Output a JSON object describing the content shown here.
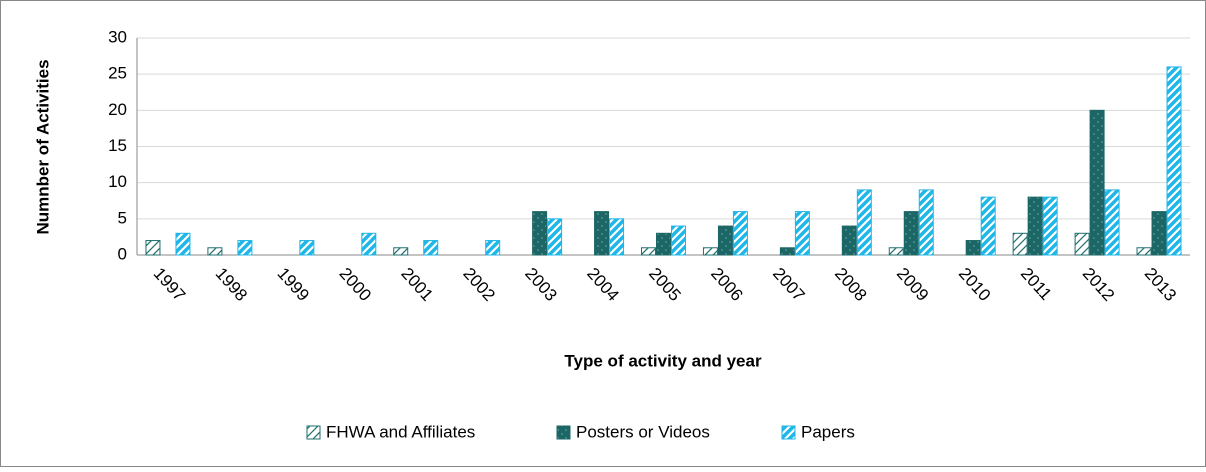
{
  "chart_data": {
    "type": "bar",
    "x_label": "Type of activity and year",
    "y_label": "Numnber of Activities",
    "categories": [
      "1997",
      "1998",
      "1999",
      "2000",
      "2001",
      "2002",
      "2003",
      "2004",
      "2005",
      "2006",
      "2007",
      "2008",
      "2009",
      "2010",
      "2011",
      "2012",
      "2013"
    ],
    "series": [
      {
        "name": "FHWA and Affiliates",
        "color": "#216f6f",
        "values": [
          2,
          1,
          0,
          0,
          1,
          0,
          0,
          0,
          1,
          1,
          0,
          0,
          1,
          0,
          3,
          3,
          1
        ]
      },
      {
        "name": "Posters or Videos",
        "color": "#1c6666",
        "values": [
          0,
          0,
          0,
          0,
          0,
          0,
          6,
          6,
          3,
          4,
          1,
          4,
          6,
          2,
          8,
          20,
          6
        ]
      },
      {
        "name": "Papers",
        "color": "#1fb6e8",
        "values": [
          3,
          2,
          2,
          3,
          2,
          2,
          5,
          5,
          4,
          6,
          6,
          9,
          9,
          8,
          8,
          9,
          26
        ]
      }
    ],
    "ylim": [
      0,
      30
    ],
    "yticks": [
      0,
      5,
      10,
      15,
      20,
      25,
      30
    ],
    "grid": true,
    "legend": "bottom"
  }
}
